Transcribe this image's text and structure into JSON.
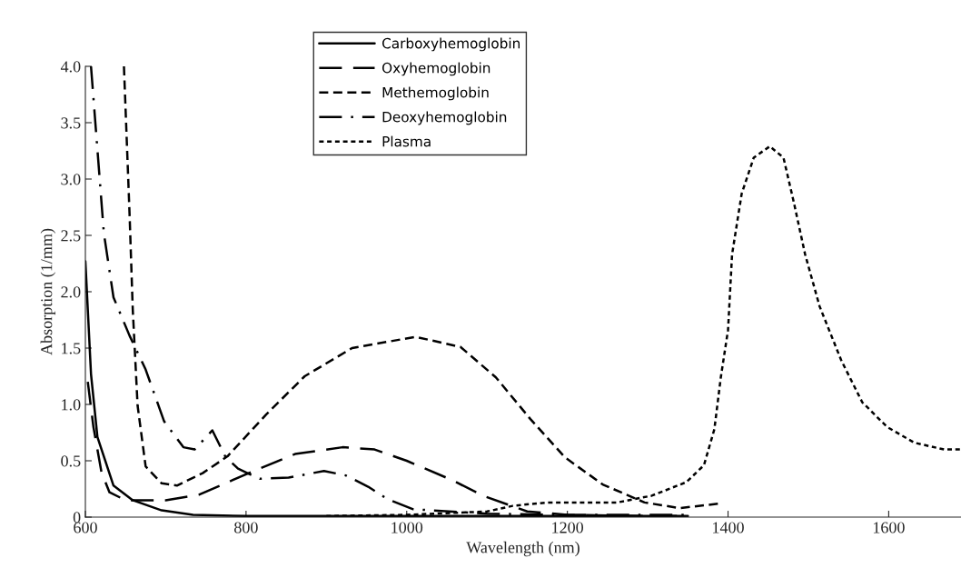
{
  "chart_data": {
    "type": "line",
    "xlabel": "Wavelength (nm)",
    "ylabel": "Absorption (1/mm)",
    "xlim": [
      600,
      1690
    ],
    "ylim": [
      0,
      4.0
    ],
    "xticks": [
      600,
      800,
      1000,
      1200,
      1400,
      1600
    ],
    "yticks": [
      0,
      {
        "value": 0.5,
        "label": "0.5"
      },
      {
        "value": 1,
        "label": "1.0"
      },
      {
        "value": 1.5,
        "label": "1.5"
      },
      {
        "value": 2,
        "label": "2.0"
      },
      {
        "value": 2.5,
        "label": "2.5"
      },
      {
        "value": 3,
        "label": "3.0"
      },
      {
        "value": 3.5,
        "label": "3.5"
      },
      {
        "value": 4,
        "label": "4.0"
      }
    ],
    "grid": false,
    "legend": "top",
    "marker": "none",
    "series": [
      {
        "name": "Carboxyhemoglobin",
        "color": "#000000",
        "line_style": "solid",
        "x": [
          600,
          607,
          615,
          635,
          659,
          695,
          734,
          800,
          900,
          1000,
          1100,
          1200,
          1300,
          1350
        ],
        "values": [
          2.27,
          1.27,
          0.71,
          0.28,
          0.15,
          0.06,
          0.02,
          0.01,
          0.01,
          0.01,
          0.01,
          0.01,
          0.01,
          0.01
        ]
      },
      {
        "name": "Oxyhemoglobin",
        "color": "#000000",
        "line_style": "longdash",
        "x": [
          603,
          610,
          620,
          630,
          650,
          700,
          742,
          800,
          861,
          920,
          960,
          1000,
          1056,
          1095,
          1150,
          1200,
          1300,
          1350
        ],
        "values": [
          1.2,
          0.8,
          0.4,
          0.22,
          0.15,
          0.15,
          0.2,
          0.38,
          0.56,
          0.62,
          0.6,
          0.5,
          0.33,
          0.19,
          0.05,
          0.02,
          0.01,
          0.01
        ]
      },
      {
        "name": "Methemoglobin",
        "color": "#000000",
        "line_style": "dashed",
        "x": [
          648,
          655,
          659,
          665,
          675,
          695,
          714,
          746,
          777,
          825,
          873,
          932,
          1011,
          1067,
          1111,
          1154,
          1197,
          1244,
          1296,
          1340,
          1389
        ],
        "values": [
          4.0,
          2.69,
          1.84,
          0.99,
          0.45,
          0.3,
          0.28,
          0.39,
          0.54,
          0.91,
          1.25,
          1.5,
          1.6,
          1.51,
          1.24,
          0.87,
          0.53,
          0.29,
          0.13,
          0.08,
          0.12
        ]
      },
      {
        "name": "Deoxyhemoglobin",
        "color": "#000000",
        "line_style": "dashdot",
        "x": [
          607,
          615,
          623,
          635,
          655,
          675,
          698,
          722,
          736,
          758,
          774,
          790,
          817,
          853,
          897,
          924,
          952,
          976,
          1008,
          1100,
          1200,
          1350
        ],
        "values": [
          4.0,
          3.26,
          2.52,
          1.95,
          1.61,
          1.31,
          0.85,
          0.62,
          0.6,
          0.77,
          0.54,
          0.43,
          0.34,
          0.35,
          0.41,
          0.37,
          0.27,
          0.16,
          0.07,
          0.03,
          0.02,
          0.02
        ]
      },
      {
        "name": "Plasma",
        "color": "#000000",
        "line_style": "dotted",
        "x": [
          900,
          1000,
          1100,
          1132,
          1175,
          1262,
          1305,
          1348,
          1370,
          1383,
          1391,
          1400,
          1405,
          1417,
          1432,
          1452,
          1469,
          1482,
          1496,
          1514,
          1541,
          1567,
          1598,
          1632,
          1669,
          1689
        ],
        "values": [
          0.01,
          0.02,
          0.05,
          0.1,
          0.13,
          0.13,
          0.19,
          0.31,
          0.46,
          0.78,
          1.24,
          1.66,
          2.33,
          2.87,
          3.19,
          3.29,
          3.19,
          2.79,
          2.33,
          1.87,
          1.39,
          1.02,
          0.8,
          0.66,
          0.6,
          0.6
        ]
      }
    ]
  }
}
